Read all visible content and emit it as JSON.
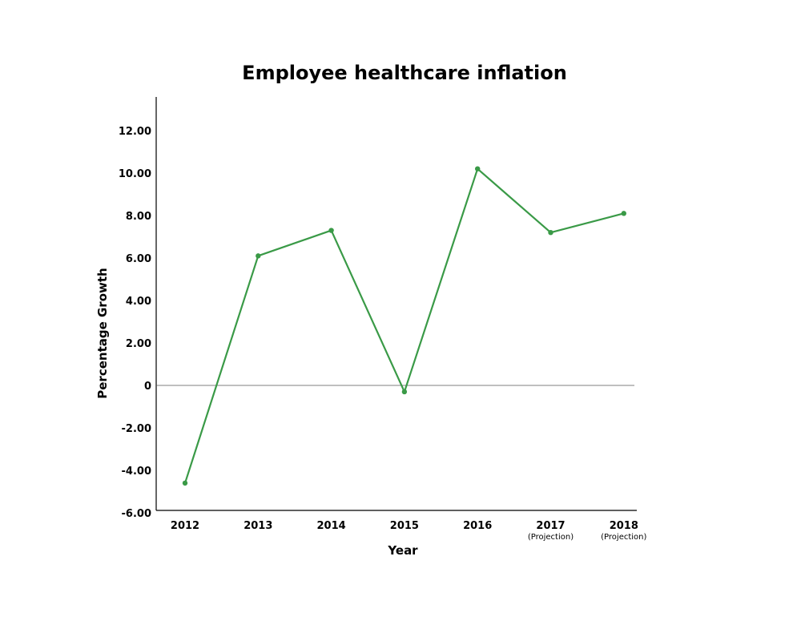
{
  "chart_data": {
    "type": "line",
    "title": "Employee healthcare inflation",
    "xlabel": "Year",
    "ylabel": "Percentage Growth",
    "categories": [
      "2012",
      "2013",
      "2014",
      "2015",
      "2016",
      "2017",
      "2018"
    ],
    "category_notes": [
      "",
      "",
      "",
      "",
      "",
      "(Projection)",
      "(Projection)"
    ],
    "y_ticks": [
      "12.00",
      "10.00",
      "8.00",
      "6.00",
      "4.00",
      "2.00",
      "0",
      "-2.00",
      "-4.00",
      "-6.00"
    ],
    "ylim": [
      -6,
      12
    ],
    "grid": false,
    "legend": "none",
    "series": [
      {
        "color": "#3a9a47",
        "values": [
          -4.6,
          6.1,
          7.3,
          -0.3,
          10.2,
          7.2,
          8.1
        ]
      }
    ]
  }
}
